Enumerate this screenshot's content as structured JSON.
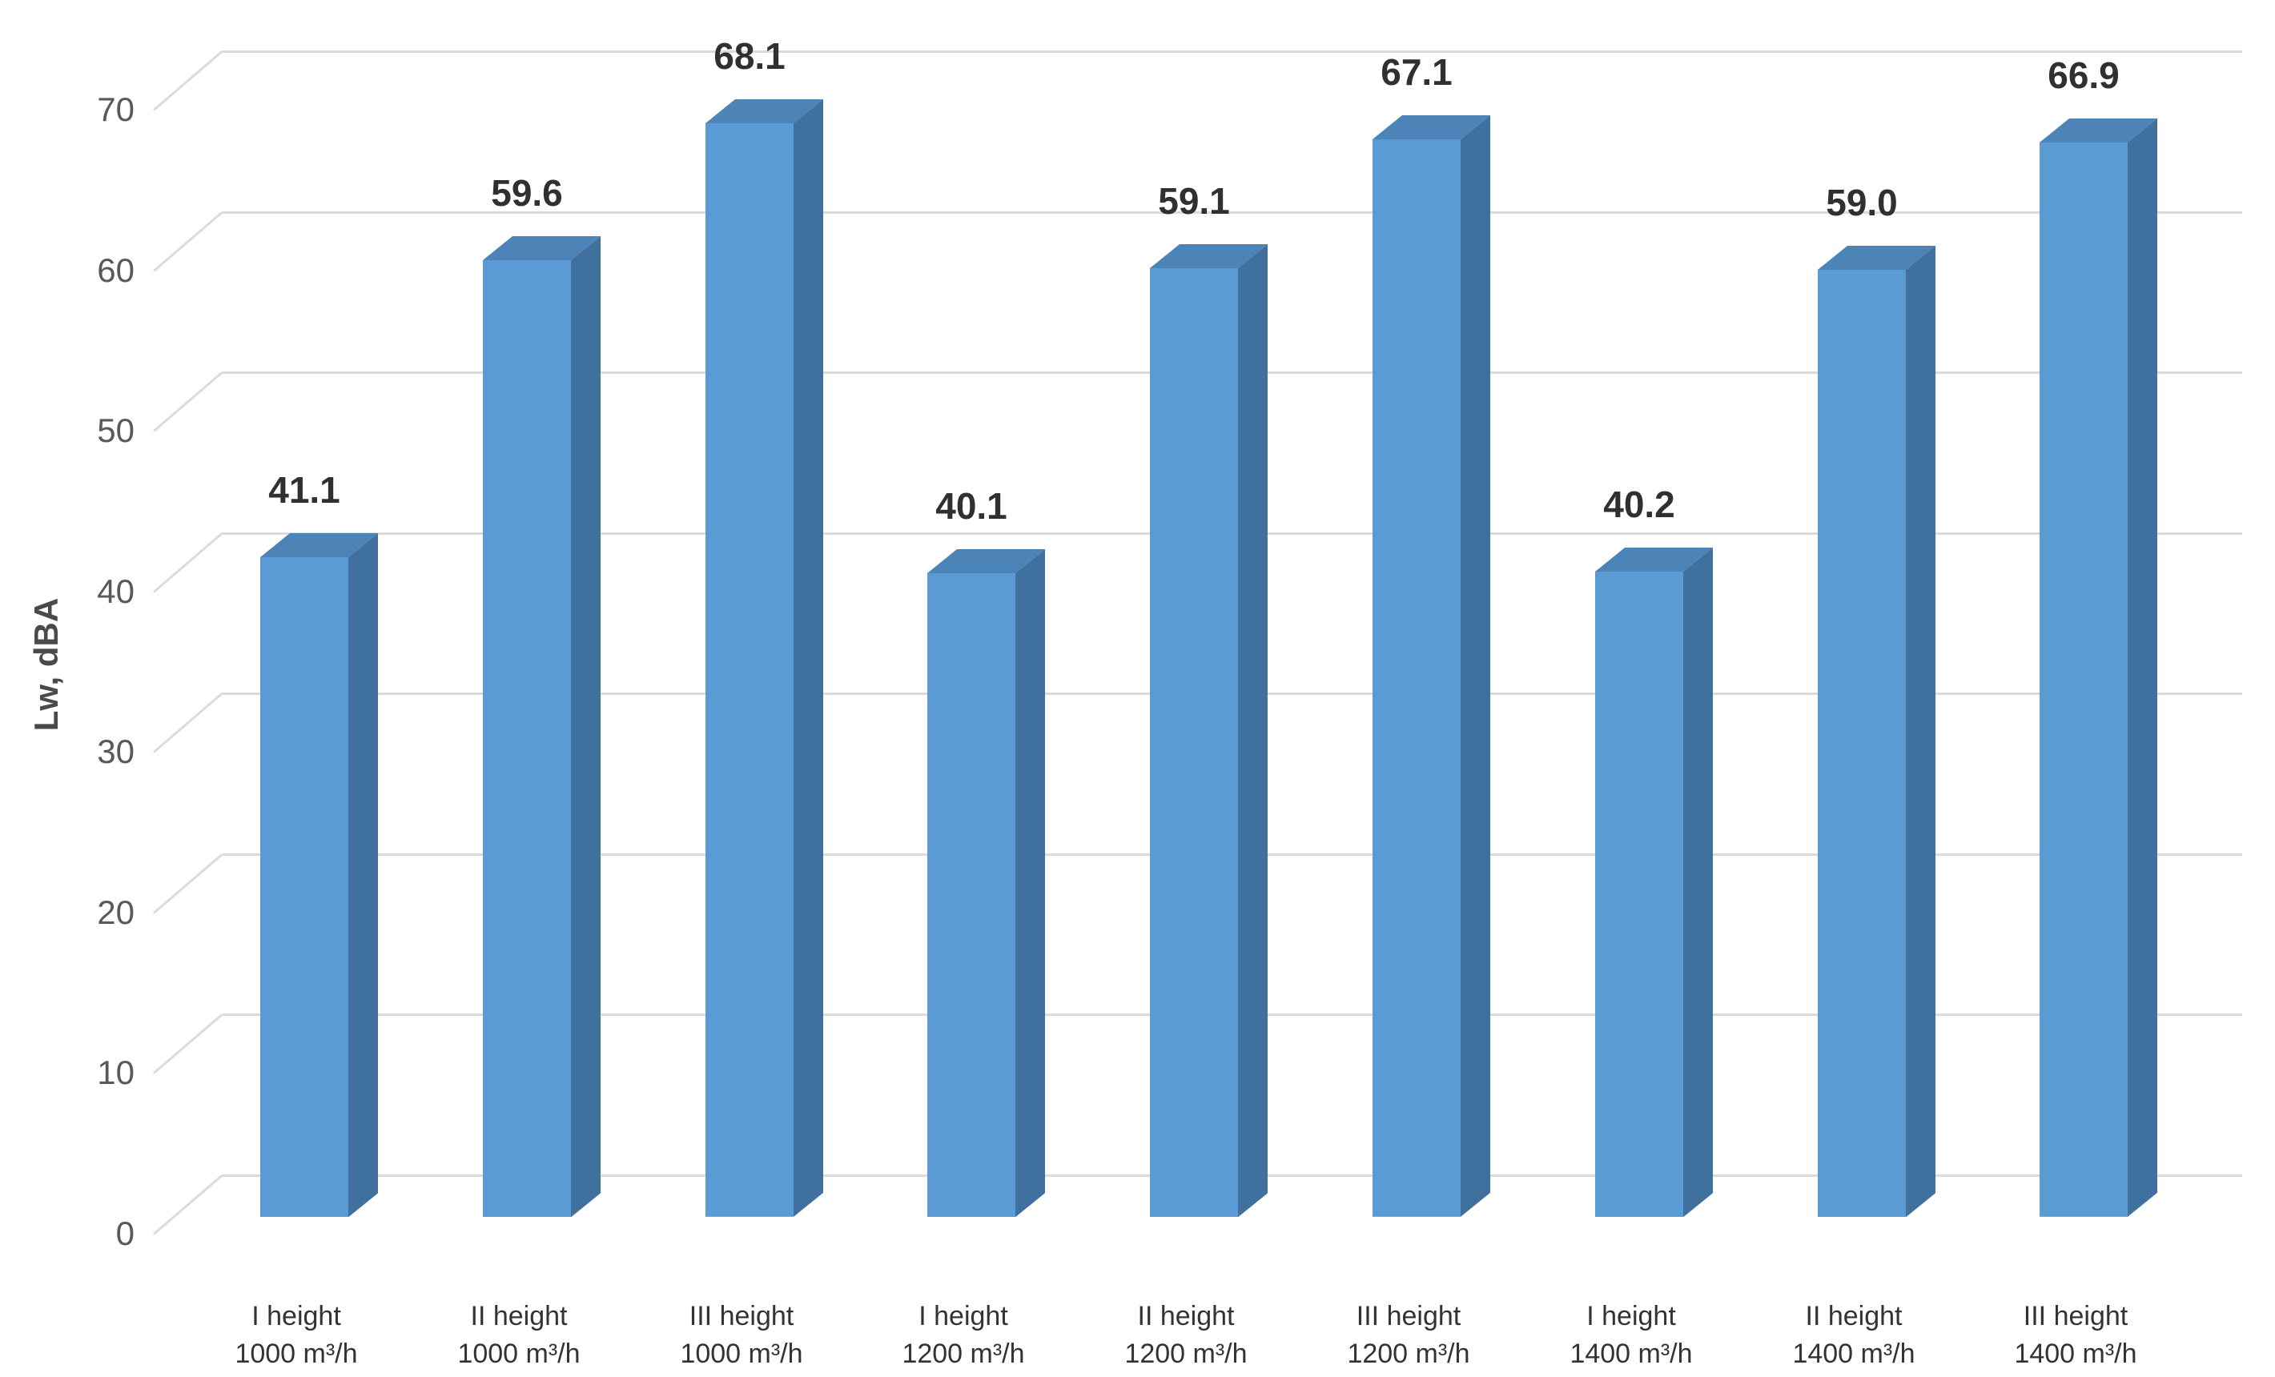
{
  "chart_data": {
    "type": "bar",
    "title": "",
    "xlabel": "",
    "ylabel": "Lw, dBA",
    "style_3d": true,
    "grid": true,
    "legend": false,
    "ylim": [
      0,
      70
    ],
    "yticks": [
      "0",
      "10",
      "20",
      "30",
      "40",
      "50",
      "60",
      "70"
    ],
    "categories": [
      {
        "line1": "I height",
        "line2": "1000 m³/h"
      },
      {
        "line1": "II height",
        "line2": "1000 m³/h"
      },
      {
        "line1": "III height",
        "line2": "1000 m³/h"
      },
      {
        "line1": "I height",
        "line2": "1200 m³/h"
      },
      {
        "line1": "II height",
        "line2": "1200 m³/h"
      },
      {
        "line1": "III height",
        "line2": "1200 m³/h"
      },
      {
        "line1": "I height",
        "line2": "1400 m³/h"
      },
      {
        "line1": "II height",
        "line2": "1400 m³/h"
      },
      {
        "line1": "III height",
        "line2": "1400 m³/h"
      }
    ],
    "values": [
      41.1,
      59.6,
      68.1,
      40.1,
      59.1,
      67.1,
      40.2,
      59.0,
      66.9
    ],
    "value_labels": [
      "41.1",
      "59.6",
      "68.1",
      "40.1",
      "59.1",
      "67.1",
      "40.2",
      "59.0",
      "66.9"
    ],
    "colors": {
      "bar_front": "#5B9BD5",
      "bar_side": "#40719E",
      "bar_top": "#4D84B8",
      "gridline": "#DBDBDB",
      "tick_text": "#595959",
      "value_text": "#303030",
      "category_text": "#333333",
      "axis_title_text": "#4a4a4a",
      "background": "#FFFFFF"
    }
  }
}
